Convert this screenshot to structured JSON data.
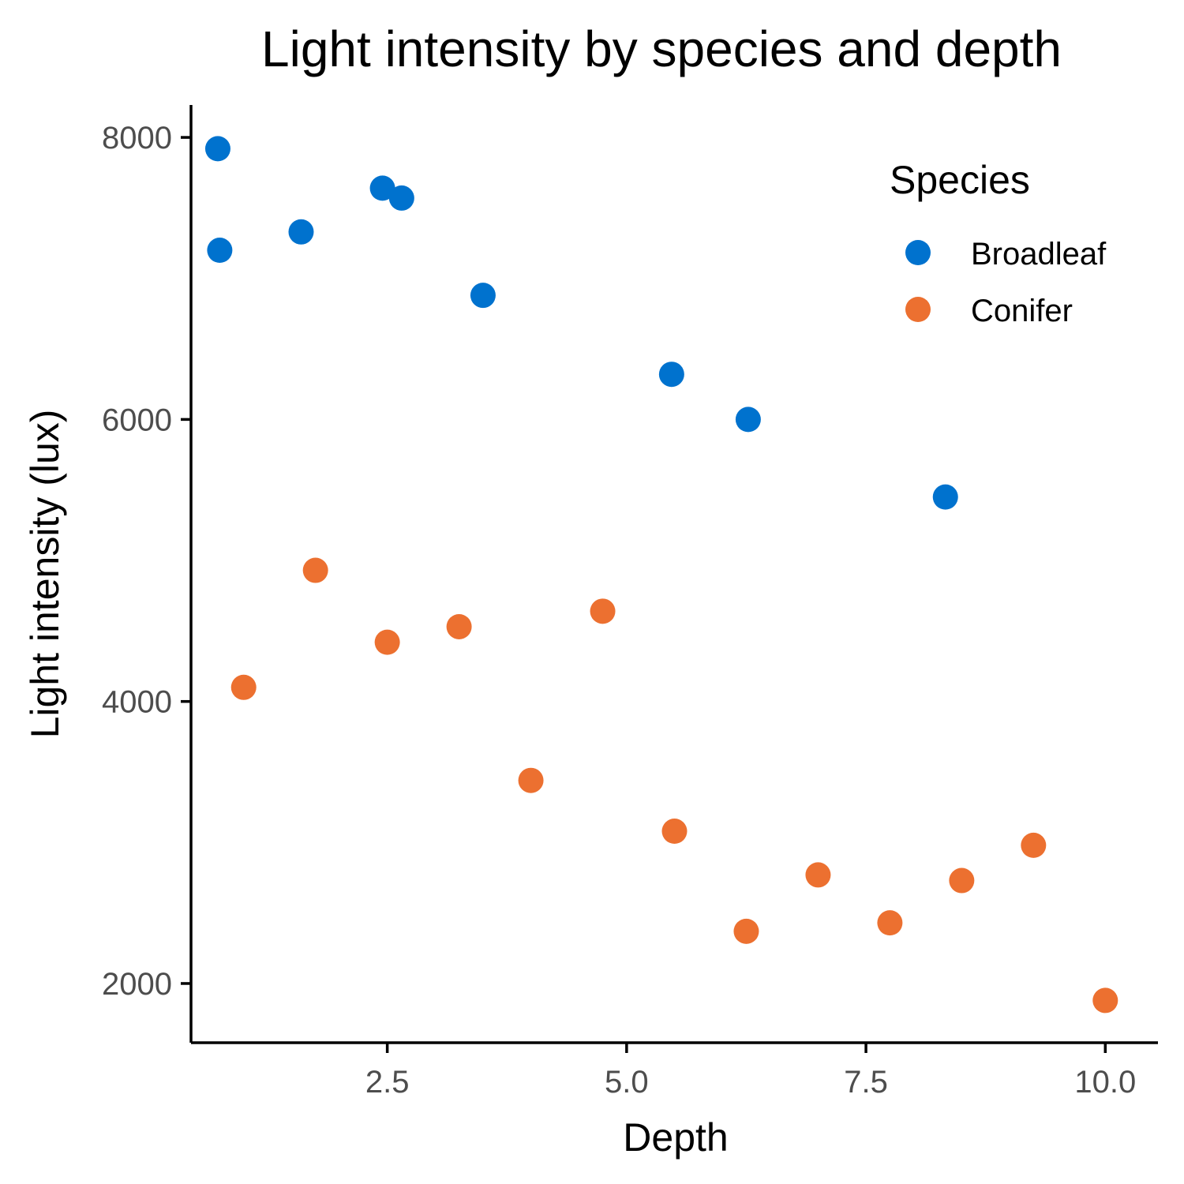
{
  "chart_data": {
    "type": "scatter",
    "title": "Light intensity by species and depth",
    "xlabel": "Depth",
    "ylabel": "Light intensity (lux)",
    "xlim": [
      0.45,
      10.55
    ],
    "ylim": [
      1580,
      8230
    ],
    "x_ticks": [
      2.5,
      5.0,
      7.5,
      10.0
    ],
    "x_tick_labels": [
      "2.5",
      "5.0",
      "7.5",
      "10.0"
    ],
    "y_ticks": [
      2000,
      4000,
      6000,
      8000
    ],
    "y_tick_labels": [
      "2000",
      "4000",
      "6000",
      "8000"
    ],
    "grid": false,
    "legend": {
      "title": "Species",
      "position": "top-right"
    },
    "series": [
      {
        "name": "Broadleaf",
        "color": "#0072CE",
        "points": [
          {
            "x": 0.73,
            "y": 7920
          },
          {
            "x": 0.75,
            "y": 7200
          },
          {
            "x": 1.6,
            "y": 7330
          },
          {
            "x": 2.45,
            "y": 7640
          },
          {
            "x": 2.65,
            "y": 7570
          },
          {
            "x": 3.5,
            "y": 6880
          },
          {
            "x": 5.47,
            "y": 6320
          },
          {
            "x": 6.27,
            "y": 6000
          },
          {
            "x": 8.33,
            "y": 5450
          }
        ]
      },
      {
        "name": "Conifer",
        "color": "#EC7030",
        "points": [
          {
            "x": 1.0,
            "y": 4100
          },
          {
            "x": 1.75,
            "y": 4930
          },
          {
            "x": 2.5,
            "y": 4420
          },
          {
            "x": 3.25,
            "y": 4530
          },
          {
            "x": 4.0,
            "y": 3440
          },
          {
            "x": 4.75,
            "y": 4640
          },
          {
            "x": 5.5,
            "y": 3080
          },
          {
            "x": 6.25,
            "y": 2370
          },
          {
            "x": 7.0,
            "y": 2770
          },
          {
            "x": 7.75,
            "y": 2430
          },
          {
            "x": 8.5,
            "y": 2730
          },
          {
            "x": 9.25,
            "y": 2980
          },
          {
            "x": 10.0,
            "y": 1880
          }
        ]
      }
    ]
  }
}
